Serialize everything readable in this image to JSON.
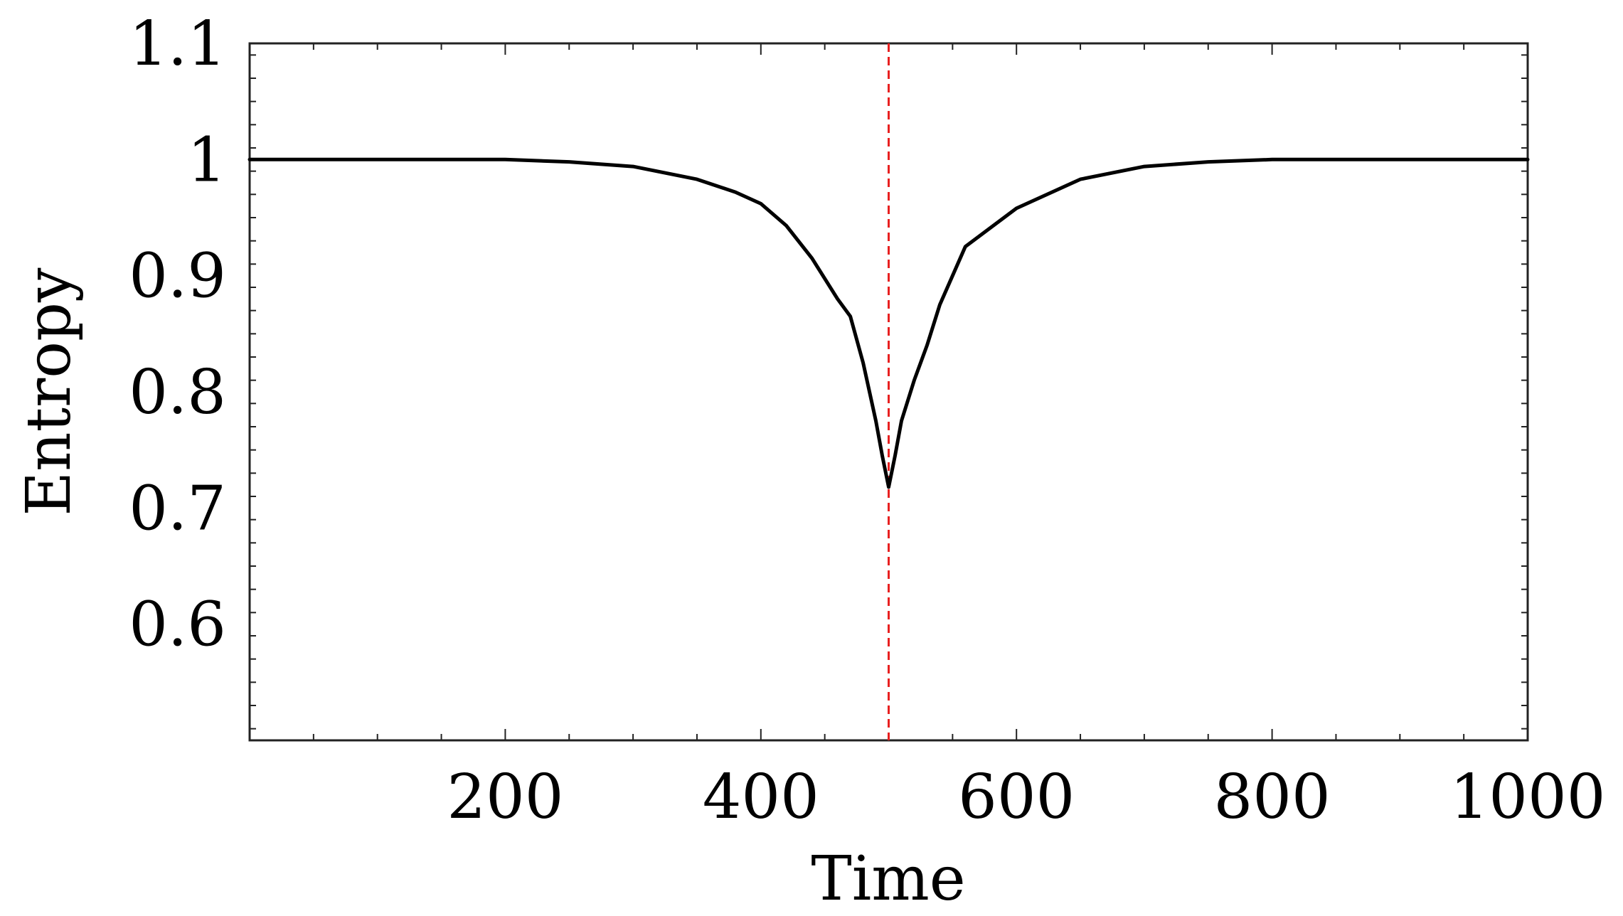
{
  "chart_data": {
    "type": "line",
    "title": "",
    "xlabel": "Time",
    "ylabel": "Entropy",
    "xlim": [
      0,
      1000
    ],
    "ylim": [
      0.5,
      1.1
    ],
    "x_ticks": [
      200,
      400,
      600,
      800,
      1000
    ],
    "x_tick_labels": [
      "200",
      "400",
      "600",
      "800",
      "1000"
    ],
    "y_ticks": [
      0.6,
      0.7,
      0.8,
      0.9,
      1.0,
      1.1
    ],
    "y_tick_labels": [
      "0.6",
      "0.7",
      "0.8",
      "0.9",
      "1",
      "1.1"
    ],
    "grid": false,
    "series": [
      {
        "color": "#000000",
        "x": [
          0,
          100,
          200,
          250,
          300,
          350,
          380,
          400,
          420,
          440,
          460,
          470,
          480,
          490,
          495,
          500,
          505,
          510,
          520,
          530,
          540,
          560,
          600,
          650,
          700,
          750,
          800,
          850,
          900,
          1000
        ],
        "y": [
          1.0,
          1.0,
          1.0,
          0.998,
          0.994,
          0.983,
          0.972,
          0.962,
          0.943,
          0.915,
          0.88,
          0.865,
          0.825,
          0.775,
          0.745,
          0.718,
          0.745,
          0.775,
          0.81,
          0.84,
          0.875,
          0.925,
          0.958,
          0.983,
          0.994,
          0.998,
          1.0,
          1.0,
          1.0,
          1.0
        ]
      }
    ],
    "reference_line": {
      "x": 500,
      "color": "#e82020",
      "style": "dashed"
    }
  }
}
